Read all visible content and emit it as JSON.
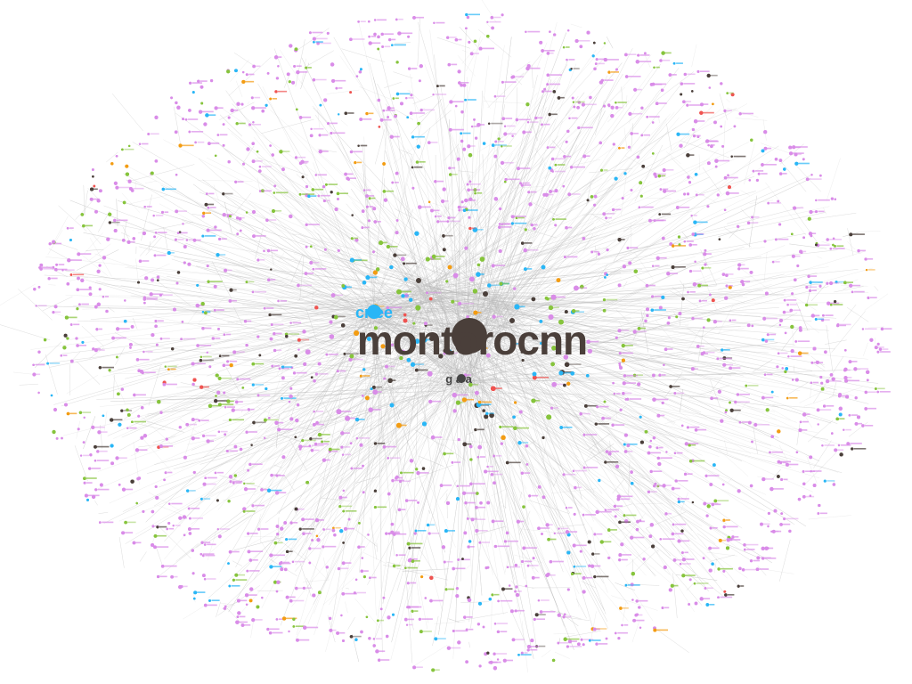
{
  "graph": {
    "background": "#ffffff",
    "edge_color": "#b8b8b8",
    "node_colors": {
      "majority": "#d98ce8",
      "group_green": "#86c43c",
      "group_cyan": "#29b6f6",
      "group_dark": "#4a3f3a",
      "group_orange": "#f39c12",
      "group_red": "#ef5350"
    },
    "hubs": [
      {
        "id": "hub-main",
        "label": "montorocnn",
        "color": "#4a3f3a"
      },
      {
        "id": "hub-secondary",
        "label": "cr ee",
        "color": "#29b6f6"
      },
      {
        "id": "hub-tertiary",
        "label": "g a a",
        "color": "#444444"
      }
    ]
  }
}
